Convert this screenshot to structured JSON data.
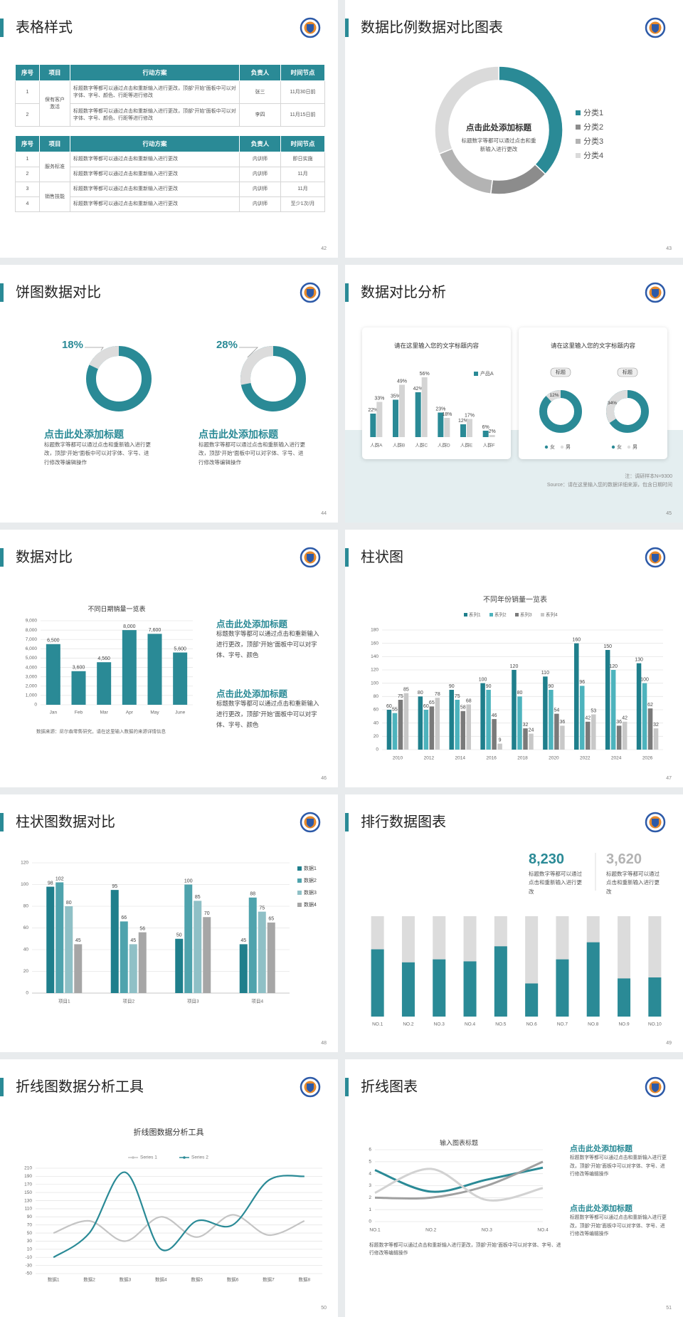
{
  "slides": [
    {
      "title": "表格样式",
      "page": "42",
      "tables": [
        {
          "headers": [
            "序号",
            "项目",
            "行动方案",
            "负责人",
            "时间节点"
          ],
          "groups": [
            {
              "item": "保有客户激活",
              "rows": [
                [
                  "1",
                  "标题数字等都可以通过点击和重新输入进行更改，顶部“开始”面板中可以对字体、字号、颜色、行距等进行修改",
                  "张三",
                  "11月30日前"
                ],
                [
                  "2",
                  "标题数字等都可以通过点击和重新输入进行更改，顶部“开始”面板中可以对字体、字号、颜色、行距等进行修改",
                  "李四",
                  "11月15日前"
                ]
              ]
            }
          ]
        },
        {
          "headers": [
            "序号",
            "项目",
            "行动方案",
            "负责人",
            "时间节点"
          ],
          "groups": [
            {
              "item": "服务标准",
              "rows": [
                [
                  "1",
                  "标题数字等都可以通过点击和重新输入进行更改",
                  "内训师",
                  "即日实施"
                ],
                [
                  "2",
                  "标题数字等都可以通过点击和重新输入进行更改",
                  "内训师",
                  "11月"
                ]
              ]
            },
            {
              "item": "销售技能",
              "rows": [
                [
                  "3",
                  "标题数字等都可以通过点击和重新输入进行更改",
                  "内训师",
                  "11月"
                ],
                [
                  "4",
                  "标题数字等都可以通过点击和重新输入进行更改",
                  "内训师",
                  "至少1次/月"
                ]
              ]
            }
          ]
        }
      ]
    },
    {
      "title": "数据比例数据对比图表",
      "page": "43",
      "chart_data": {
        "type": "donut",
        "title": "点击此处添加标题",
        "subtitle": "标题数字等都可以通过点击和重新输入进行更改",
        "categories": [
          "分类1",
          "分类2",
          "分类3",
          "分类4"
        ],
        "values": [
          37,
          15,
          17,
          31
        ],
        "colors": [
          "#2a8a96",
          "#8c8c8c",
          "#b3b3b3",
          "#dadada"
        ]
      }
    },
    {
      "title": "饼图数据对比",
      "page": "44",
      "items": [
        {
          "chart_data": {
            "type": "donut",
            "values": [
              18
            ],
            "value_labels": [
              "18%"
            ],
            "color": "#dcdcdc",
            "track_color": "#2a8a96"
          },
          "heading": "点击此处添加标题",
          "text": "标题数字等都可以通过点击和重新输入进行更改，顶部“开始”面板中可以对字体、字号、进行修改等编辑操作"
        },
        {
          "chart_data": {
            "type": "donut",
            "values": [
              28
            ],
            "value_labels": [
              "28%"
            ],
            "color": "#dcdcdc",
            "track_color": "#2a8a96"
          },
          "heading": "点击此处添加标题",
          "text": "标题数字等都可以通过点击和重新输入进行更改，顶部“开始”面板中可以对字体、字号、进行修改等编辑操作"
        }
      ]
    },
    {
      "title": "数据对比分析",
      "page": "45",
      "cards": [
        {
          "title": "请在这里输入您的文字标题内容",
          "chart_data": {
            "type": "bar",
            "categories": [
              "人群A",
              "人群B",
              "人群C",
              "人群D",
              "人群E",
              "人群F"
            ],
            "series": [
              {
                "name": "产品A",
                "color": "#2a8a96",
                "values": [
                  22,
                  35,
                  42,
                  23,
                  12,
                  6
                ],
                "value_labels": [
                  "22%",
                  "35%",
                  "42%",
                  "23%",
                  "12%",
                  "6%"
                ]
              },
              {
                "color": "#d4d4d4",
                "values": [
                  33,
                  49,
                  56,
                  18,
                  17,
                  2
                ],
                "value_labels": [
                  "33%",
                  "49%",
                  "56%",
                  "18%",
                  "17%",
                  "2%"
                ]
              }
            ]
          }
        },
        {
          "title": "请在这里输入您的文字标题内容",
          "charts": [
            {
              "label": "标题",
              "chart_data": {
                "type": "donut",
                "values": [
                  12
                ],
                "value_labels": [
                  "12%"
                ],
                "color": "#dcdcdc",
                "track_color": "#2a8a96",
                "legend": [
                  "女",
                  "男"
                ],
                "legend_colors": [
                  "#2a8a96",
                  "#dcdcdc"
                ]
              }
            },
            {
              "label": "标题",
              "chart_data": {
                "type": "donut",
                "values": [
                  34
                ],
                "value_labels": [
                  "34%"
                ],
                "color": "#dcdcdc",
                "track_color": "#2a8a96",
                "legend": [
                  "女",
                  "男"
                ],
                "legend_colors": [
                  "#2a8a96",
                  "#dcdcdc"
                ]
              }
            }
          ]
        }
      ],
      "notes": [
        "注：调研样本N=9300",
        "Source：请在这里输入您的数据详细来源，包含日期时间"
      ]
    },
    {
      "title": "数据对比",
      "page": "46",
      "chart_data": {
        "type": "bar",
        "title": "不同日期销量一览表",
        "categories": [
          "Jan",
          "Feb",
          "Mar",
          "Apr",
          "May",
          "June"
        ],
        "values": [
          6500,
          3600,
          4560,
          8000,
          7600,
          5600
        ],
        "value_labels": [
          "6,500",
          "3,600",
          "4,560",
          "8,000",
          "7,600",
          "5,600"
        ],
        "color": "#2a8a96",
        "ylim": [
          0,
          9000
        ],
        "yticks": [
          0,
          {
            "value": 1000,
            "label": "1,000"
          },
          {
            "value": 2000,
            "label": "2,000"
          },
          {
            "value": 3000,
            "label": "3,000"
          },
          {
            "value": 4000,
            "label": "4,000"
          },
          {
            "value": 5000,
            "label": "5,000"
          },
          {
            "value": 6000,
            "label": "6,000"
          },
          {
            "value": 7000,
            "label": "7,000"
          },
          {
            "value": 8000,
            "label": "8,000"
          },
          {
            "value": 9000,
            "label": "9,000"
          }
        ],
        "grid": true,
        "source": "数据来源：尼尔森零售研究，请在这里输入数据的来源详情信息"
      },
      "blocks": [
        {
          "heading": "点击此处添加标题",
          "text": "标题数字等都可以通过点击和重新输入进行更改，顶部“开始”面板中可以对字体、字号、颜色"
        },
        {
          "heading": "点击此处添加标题",
          "text": "标题数字等都可以通过点击和重新输入进行更改，顶部“开始”面板中可以对字体、字号、颜色"
        }
      ]
    },
    {
      "title": "柱状图",
      "page": "47",
      "chart_data": {
        "type": "bar",
        "title": "不同年份销量一览表",
        "categories": [
          "2010",
          "2012",
          "2014",
          "2016",
          "2018",
          "2020",
          "2022",
          "2024",
          "2026"
        ],
        "series": [
          {
            "name": "系列1",
            "color": "#1f7f8c",
            "values": [
              60,
              80,
              90,
              100,
              120,
              110,
              160,
              150,
              130
            ]
          },
          {
            "name": "系列2",
            "color": "#4db3bd",
            "values": [
              55,
              60,
              75,
              90,
              80,
              90,
              96,
              120,
              100
            ]
          },
          {
            "name": "系列3",
            "color": "#7a7a7a",
            "values": [
              75,
              65,
              58,
              46,
              32,
              54,
              42,
              36,
              62
            ]
          },
          {
            "name": "系列4",
            "color": "#c8c8c8",
            "values": [
              85,
              78,
              68,
              9,
              24,
              36,
              53,
              42,
              32
            ]
          }
        ],
        "ylim": [
          0,
          180
        ],
        "yticks": [
          0,
          20,
          40,
          60,
          80,
          100,
          120,
          140,
          160,
          180
        ],
        "grid": true
      }
    },
    {
      "title": "柱状图数据对比",
      "page": "48",
      "chart_data": {
        "type": "bar",
        "categories": [
          "项目1",
          "项目2",
          "项目3",
          "项目4"
        ],
        "series": [
          {
            "name": "数据1",
            "color": "#1f7f8c",
            "values": [
              98,
              95,
              50,
              45
            ]
          },
          {
            "name": "数据2",
            "color": "#4fa3ad",
            "values": [
              102,
              66,
              100,
              88
            ]
          },
          {
            "name": "数据3",
            "color": "#8fc0c6",
            "values": [
              80,
              45,
              85,
              75
            ]
          },
          {
            "name": "数据4",
            "color": "#a6a6a6",
            "values": [
              45,
              56,
              70,
              65
            ]
          }
        ],
        "ylim": [
          0,
          120
        ],
        "yticks": [
          0,
          20,
          40,
          60,
          80,
          100,
          120
        ],
        "grid": true
      }
    },
    {
      "title": "排行数据图表",
      "page": "49",
      "stats": [
        {
          "value": "8,230",
          "text": "标题数字等都可以通过点击和重新输入进行更改",
          "color": "#2a8a96"
        },
        {
          "value": "3,620",
          "text": "标题数字等都可以通过点击和重新输入进行更改",
          "color": "#b3b3b3"
        }
      ],
      "chart_data": {
        "type": "bar",
        "categories": [
          "NO.1",
          "NO.2",
          "NO.3",
          "NO.4",
          "NO.5",
          "NO.6",
          "NO.7",
          "NO.8",
          "NO.9",
          "NO.10"
        ],
        "values": [
          67,
          54,
          57,
          55,
          70,
          33,
          57,
          74,
          38,
          39
        ],
        "color": "#2a8a96",
        "track_color": "#dcdcdc"
      }
    },
    {
      "title": "折线图数据分析工具",
      "page": "50",
      "chart_data": {
        "type": "line",
        "title": "折线图数据分析工具",
        "categories": [
          "数据1",
          "数据2",
          "数据3",
          "数据4",
          "数据5",
          "数据6",
          "数据7",
          "数据8"
        ],
        "series": [
          {
            "name": "Series 1",
            "color": "#c4c4c4",
            "values": [
              50,
              80,
              30,
              90,
              40,
              95,
              45,
              80
            ]
          },
          {
            "name": "Series 2",
            "color": "#2a8a96",
            "values": [
              -10,
              50,
              200,
              10,
              80,
              70,
              180,
              190
            ]
          }
        ],
        "ylim": [
          -50,
          210
        ],
        "yticks": [
          -50,
          -30,
          -10,
          10,
          30,
          50,
          70,
          90,
          110,
          130,
          150,
          170,
          190,
          210
        ],
        "grid": true
      }
    },
    {
      "title": "折线图表",
      "page": "51",
      "chart_data": {
        "type": "line",
        "title": "输入图表标题",
        "categories": [
          "NO.1",
          "NO.2",
          "NO.3",
          "NO.4"
        ],
        "series": [
          {
            "color": "#2a8a96",
            "values": [
              4.3,
              2.5,
              3.5,
              4.5
            ]
          },
          {
            "color": "#a0a0a0",
            "values": [
              2,
              2,
              3,
              5
            ]
          },
          {
            "color": "#d2d2d2",
            "values": [
              2.4,
              4.4,
              1.8,
              2.8
            ]
          }
        ],
        "ylim": [
          0,
          6
        ],
        "yticks": [
          0,
          1,
          2,
          3,
          4,
          5,
          6
        ],
        "grid": true
      },
      "blocks": [
        {
          "heading": "点击此处添加标题",
          "text": "标题数字等都可以通过点击和重新输入进行更改，顶部“开始”面板中可以对字体、字号、进行修改等编辑操作"
        },
        {
          "heading": "点击此处添加标题",
          "text": "标题数字等都可以通过点击和重新输入进行更改，顶部“开始”面板中可以对字体、字号、进行修改等编辑操作"
        }
      ],
      "footnote": "标题数字等都可以通过点击和重新输入进行更改，顶部“开始”面板中可以对字体、字号、进行修改等编辑操作"
    }
  ]
}
